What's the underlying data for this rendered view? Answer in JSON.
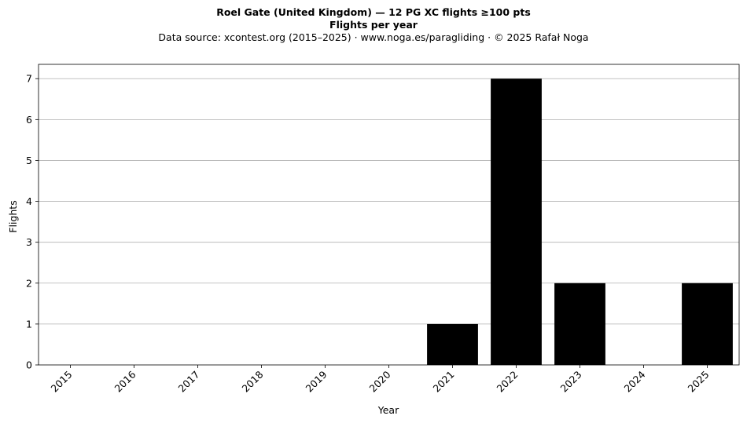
{
  "chart_data": {
    "type": "bar",
    "title": "Roel Gate (United Kingdom)  —  12 PG XC flights ≥100 pts",
    "subtitle": "Flights per year",
    "source": "Data source: xcontest.org (2015–2025)  ·  www.noga.es/paragliding  ·  © 2025 Rafał Noga",
    "xlabel": "Year",
    "ylabel": "Flights",
    "categories": [
      "2015",
      "2016",
      "2017",
      "2018",
      "2019",
      "2020",
      "2021",
      "2022",
      "2023",
      "2024",
      "2025"
    ],
    "values": [
      0,
      0,
      0,
      0,
      0,
      0,
      1,
      7,
      2,
      0,
      2
    ],
    "ylim": [
      0,
      7.35
    ],
    "yticks": [
      0,
      1,
      2,
      3,
      4,
      5,
      6,
      7
    ],
    "grid": "horizontal",
    "bar_color": "#000000",
    "grid_color": "#b0b0b0"
  }
}
